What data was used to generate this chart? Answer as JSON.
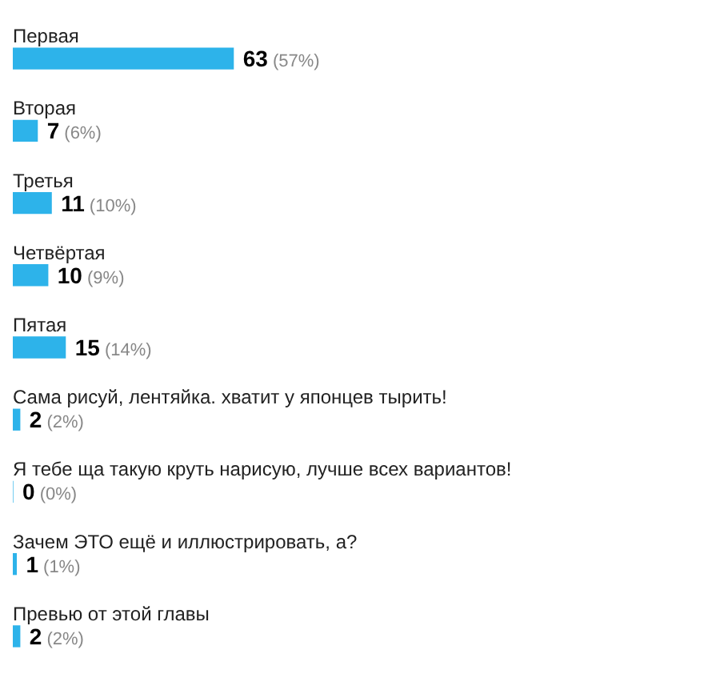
{
  "chart_data": {
    "type": "bar",
    "orientation": "horizontal",
    "color": "#2db3ea",
    "categories": [
      "Первая",
      "Вторая",
      "Третья",
      "Четвёртая",
      "Пятая",
      "Сама рисуй, лентяйка. хватит у японцев тырить!",
      "Я тебе ща такую круть нарисую, лучше всех вариантов!",
      "Зачем ЭТО ещё и иллюстрировать, а?",
      "Превью от этой главы"
    ],
    "values": [
      63,
      7,
      11,
      10,
      15,
      2,
      0,
      1,
      2
    ],
    "value_labels": [
      "63 (57%)",
      "7 (6%)",
      "11 (10%)",
      "10 (9%)",
      "15 (14%)",
      "2 (2%)",
      "0 (0%)",
      "1 (1%)",
      "2 (2%)"
    ],
    "tick_labels": false,
    "grid": false,
    "legend": false
  }
}
